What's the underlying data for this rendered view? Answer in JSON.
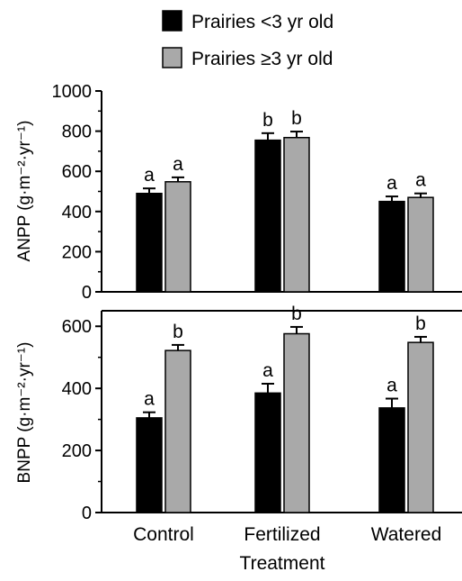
{
  "legend": {
    "position": "top",
    "entries": [
      {
        "label": "Prairies <3 yr old",
        "color": "#000000"
      },
      {
        "label": "Prairies ≥3 yr old",
        "color": "#a9a9a9"
      }
    ]
  },
  "xlabel": "Treatment",
  "chart_data": [
    {
      "type": "bar",
      "panel": "top",
      "categories": [
        "Control",
        "Fertilized",
        "Watered"
      ],
      "ylabel": "ANPP (g·m⁻²·yr⁻¹)",
      "ylim": [
        0,
        1000
      ],
      "yticks": [
        0,
        200,
        400,
        600,
        800,
        1000
      ],
      "grid": false,
      "series": [
        {
          "name": "Prairies <3 yr old",
          "color": "#000000",
          "values": [
            490,
            755,
            450
          ],
          "errors": [
            25,
            35,
            25
          ],
          "letters": [
            "a",
            "b",
            "a"
          ]
        },
        {
          "name": "Prairies ≥3 yr old",
          "color": "#a9a9a9",
          "values": [
            548,
            768,
            470
          ],
          "errors": [
            22,
            30,
            20
          ],
          "letters": [
            "a",
            "b",
            "a"
          ]
        }
      ]
    },
    {
      "type": "bar",
      "panel": "bottom",
      "categories": [
        "Control",
        "Fertilized",
        "Watered"
      ],
      "ylabel": "BNPP (g·m⁻²·yr⁻¹)",
      "ylim": [
        0,
        650
      ],
      "yticks": [
        0,
        200,
        400,
        600
      ],
      "grid": false,
      "series": [
        {
          "name": "Prairies <3 yr old",
          "color": "#000000",
          "values": [
            305,
            385,
            337
          ],
          "errors": [
            18,
            30,
            30
          ],
          "letters": [
            "a",
            "a",
            "a"
          ]
        },
        {
          "name": "Prairies ≥3 yr old",
          "color": "#a9a9a9",
          "values": [
            522,
            576,
            548
          ],
          "errors": [
            18,
            22,
            18
          ],
          "letters": [
            "b",
            "b",
            "b"
          ]
        }
      ]
    }
  ]
}
